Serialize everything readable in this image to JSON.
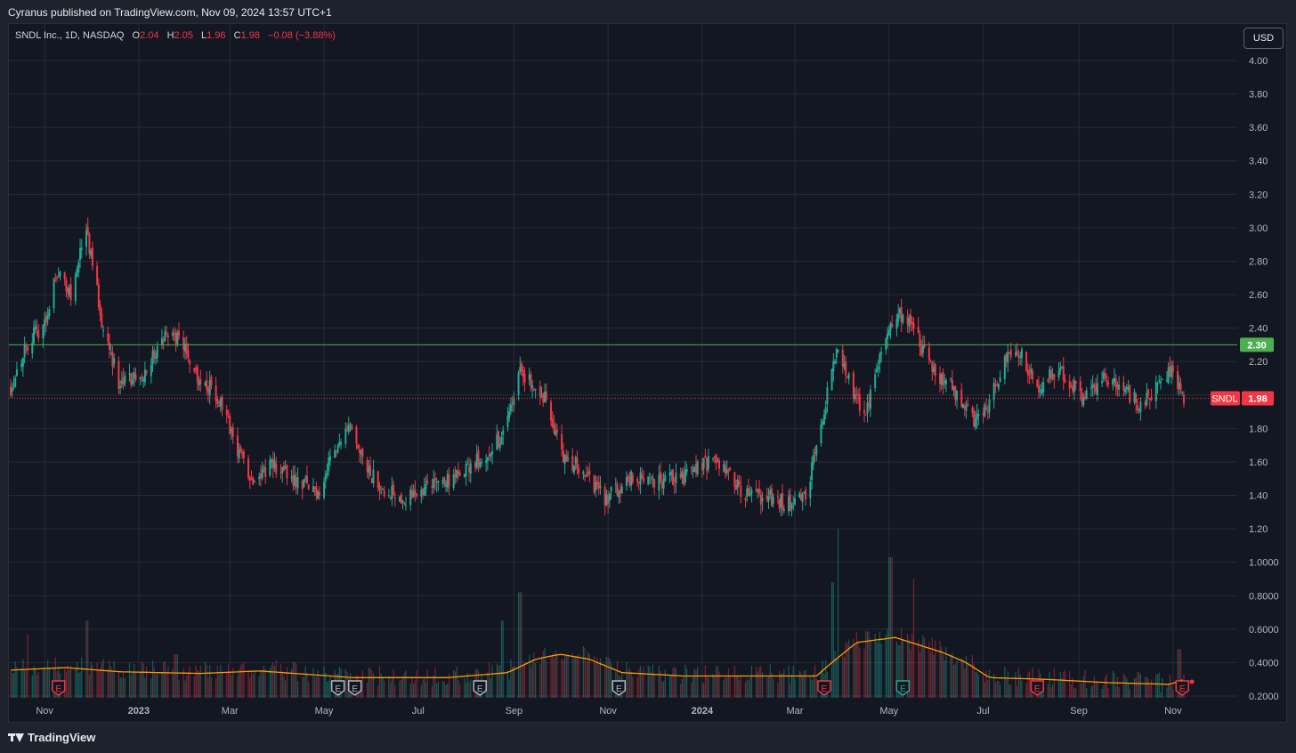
{
  "header": {
    "publish_text": "Cyranus published on TradingView.com, Nov 09, 2024 13:57 UTC+1"
  },
  "legend": {
    "symbol": "SNDL Inc., 1D, NASDAQ",
    "o_label": "O",
    "o_value": "2.04",
    "h_label": "H",
    "h_value": "2.05",
    "l_label": "L",
    "l_value": "1.96",
    "c_label": "C",
    "c_value": "1.98",
    "change": "−0.08 (−3.88%)"
  },
  "currency_button": "USD",
  "footer": {
    "brand": "TradingView"
  },
  "colors": {
    "up": "#22ab94",
    "down": "#f23645",
    "hline": "#4caf50",
    "volume_ma": "#ff9800",
    "grid": "#262b37",
    "axis_text": "#b2b5be"
  },
  "chart_data": {
    "type": "candlestick",
    "symbol": "SNDL",
    "interval": "1D",
    "ylim": [
      0.2,
      4.1
    ],
    "y_ticks": [
      "4.00",
      "3.80",
      "3.60",
      "3.40",
      "3.20",
      "3.00",
      "2.80",
      "2.60",
      "2.40",
      "2.20",
      "2.00",
      "1.80",
      "1.60",
      "1.40",
      "1.20",
      "1.0000",
      "0.8000",
      "0.6000",
      "0.4000",
      "0.2000"
    ],
    "x_ticks": [
      "Nov",
      "2023",
      "Mar",
      "May",
      "Jul",
      "Sep",
      "Nov",
      "2024",
      "Mar",
      "May",
      "Jul",
      "Sep",
      "Nov"
    ],
    "price_path": [
      [
        "2022-10-10",
        2.05
      ],
      [
        "2022-10-20",
        2.3
      ],
      [
        "2022-11-03",
        2.45
      ],
      [
        "2022-11-08",
        2.75
      ],
      [
        "2022-11-18",
        2.6
      ],
      [
        "2022-11-28",
        3.0
      ],
      [
        "2022-12-08",
        2.45
      ],
      [
        "2022-12-20",
        2.05
      ],
      [
        "2023-01-05",
        2.15
      ],
      [
        "2023-01-20",
        2.38
      ],
      [
        "2023-01-30",
        2.3
      ],
      [
        "2023-02-08",
        2.12
      ],
      [
        "2023-02-20",
        2.0
      ],
      [
        "2023-03-05",
        1.7
      ],
      [
        "2023-03-15",
        1.5
      ],
      [
        "2023-03-28",
        1.58
      ],
      [
        "2023-04-12",
        1.5
      ],
      [
        "2023-04-28",
        1.42
      ],
      [
        "2023-05-08",
        1.7
      ],
      [
        "2023-05-18",
        1.78
      ],
      [
        "2023-05-28",
        1.55
      ],
      [
        "2023-06-08",
        1.45
      ],
      [
        "2023-06-25",
        1.38
      ],
      [
        "2023-07-10",
        1.48
      ],
      [
        "2023-07-25",
        1.5
      ],
      [
        "2023-08-10",
        1.62
      ],
      [
        "2023-08-25",
        1.75
      ],
      [
        "2023-09-05",
        2.15
      ],
      [
        "2023-09-20",
        2.0
      ],
      [
        "2023-10-02",
        1.65
      ],
      [
        "2023-10-15",
        1.55
      ],
      [
        "2023-10-30",
        1.38
      ],
      [
        "2023-11-15",
        1.5
      ],
      [
        "2023-12-01",
        1.48
      ],
      [
        "2023-12-20",
        1.5
      ],
      [
        "2024-01-05",
        1.6
      ],
      [
        "2024-01-15",
        1.55
      ],
      [
        "2024-01-30",
        1.4
      ],
      [
        "2024-02-15",
        1.38
      ],
      [
        "2024-02-29",
        1.35
      ],
      [
        "2024-03-08",
        1.4
      ],
      [
        "2024-03-20",
        1.9
      ],
      [
        "2024-03-28",
        2.3
      ],
      [
        "2024-04-05",
        2.1
      ],
      [
        "2024-04-15",
        1.85
      ],
      [
        "2024-04-25",
        2.2
      ],
      [
        "2024-05-05",
        2.5
      ],
      [
        "2024-05-15",
        2.45
      ],
      [
        "2024-05-28",
        2.15
      ],
      [
        "2024-06-10",
        2.05
      ],
      [
        "2024-06-25",
        1.85
      ],
      [
        "2024-07-05",
        1.95
      ],
      [
        "2024-07-15",
        2.2
      ],
      [
        "2024-07-25",
        2.25
      ],
      [
        "2024-08-05",
        2.05
      ],
      [
        "2024-08-20",
        2.15
      ],
      [
        "2024-09-05",
        1.98
      ],
      [
        "2024-09-15",
        2.1
      ],
      [
        "2024-09-25",
        2.05
      ],
      [
        "2024-10-10",
        1.95
      ],
      [
        "2024-10-22",
        2.05
      ],
      [
        "2024-10-30",
        2.15
      ],
      [
        "2024-11-08",
        1.98
      ]
    ],
    "current_price": {
      "label": "SNDL",
      "value": 1.98
    },
    "horizontal_line": {
      "value": 2.3,
      "label": "2.30"
    },
    "volume_ma_path": [
      [
        "2022-10-10",
        0.355
      ],
      [
        "2022-11-15",
        0.37
      ],
      [
        "2022-12-20",
        0.345
      ],
      [
        "2023-02-10",
        0.335
      ],
      [
        "2023-03-20",
        0.35
      ],
      [
        "2023-05-20",
        0.31
      ],
      [
        "2023-07-20",
        0.31
      ],
      [
        "2023-08-28",
        0.34
      ],
      [
        "2023-09-15",
        0.42
      ],
      [
        "2023-10-01",
        0.45
      ],
      [
        "2023-10-20",
        0.42
      ],
      [
        "2023-11-10",
        0.34
      ],
      [
        "2023-12-20",
        0.32
      ],
      [
        "2024-02-15",
        0.32
      ],
      [
        "2024-03-15",
        0.32
      ],
      [
        "2024-03-25",
        0.4
      ],
      [
        "2024-04-10",
        0.52
      ],
      [
        "2024-05-05",
        0.55
      ],
      [
        "2024-06-05",
        0.46
      ],
      [
        "2024-06-20",
        0.4
      ],
      [
        "2024-07-05",
        0.31
      ],
      [
        "2024-08-10",
        0.3
      ],
      [
        "2024-09-20",
        0.28
      ],
      [
        "2024-10-30",
        0.27
      ],
      [
        "2024-11-08",
        0.3
      ]
    ],
    "volume_spikes": [
      [
        "2022-10-22",
        0.57
      ],
      [
        "2022-11-28",
        0.65
      ],
      [
        "2023-01-25",
        0.45
      ],
      [
        "2023-09-05",
        0.82
      ],
      [
        "2023-08-25",
        0.65
      ],
      [
        "2024-03-25",
        0.88
      ],
      [
        "2024-03-30",
        1.2
      ],
      [
        "2024-05-02",
        1.03
      ],
      [
        "2024-05-18",
        0.9
      ],
      [
        "2024-11-05",
        0.48
      ]
    ],
    "earnings_markers": [
      {
        "date": "2022-11-10",
        "type": "E",
        "status": "miss"
      },
      {
        "date": "2023-05-10",
        "type": "E",
        "status": "neutral"
      },
      {
        "date": "2023-05-21",
        "type": "E",
        "status": "neutral"
      },
      {
        "date": "2023-08-10",
        "type": "E",
        "status": "neutral"
      },
      {
        "date": "2023-11-08",
        "type": "E",
        "status": "neutral"
      },
      {
        "date": "2024-03-20",
        "type": "E",
        "status": "miss"
      },
      {
        "date": "2024-05-10",
        "type": "E",
        "status": "beat"
      },
      {
        "date": "2024-08-05",
        "type": "E",
        "status": "miss"
      },
      {
        "date": "2024-11-07",
        "type": "E",
        "status": "miss"
      }
    ]
  }
}
